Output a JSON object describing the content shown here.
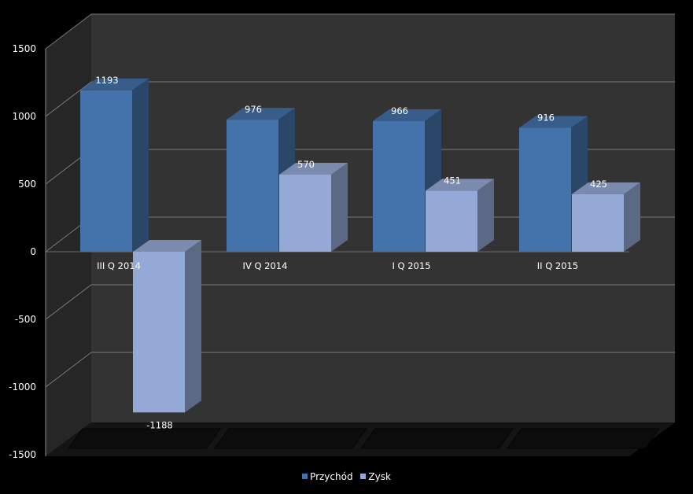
{
  "chart_data": {
    "type": "bar",
    "style": "3d-clustered-column",
    "categories": [
      "III Q 2014",
      "IV Q 2014",
      "I Q 2015",
      "II Q 2015"
    ],
    "series": [
      {
        "name": "Przychód",
        "values": [
          1193,
          976,
          966,
          916
        ],
        "color": "#4472aa"
      },
      {
        "name": "Zysk",
        "values": [
          -1188,
          570,
          451,
          425
        ],
        "color": "#95a9d6"
      }
    ],
    "ylim": [
      -1500,
      1500
    ],
    "yticks": [
      "1500",
      "1000",
      "500",
      "0",
      "-500",
      "-1000",
      "-1500"
    ],
    "grid": true,
    "legend_position": "bottom",
    "data_labels": true
  }
}
